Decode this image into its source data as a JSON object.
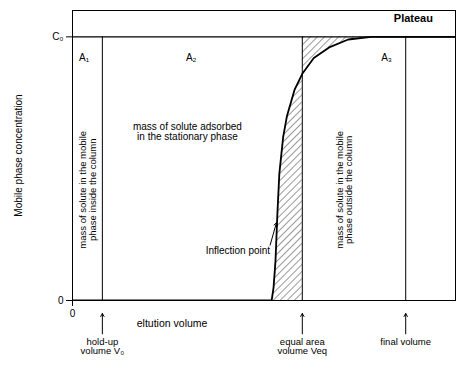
{
  "chart_data": {
    "type": "line",
    "xlabel": "eltution volume",
    "ylabel": "Mobile phase concentration",
    "x": [
      0,
      52,
      52.5,
      53,
      53.5,
      54,
      55,
      56,
      58,
      60,
      63,
      67,
      72,
      78,
      100
    ],
    "values": [
      0,
      0,
      0.05,
      0.15,
      0.33,
      0.48,
      0.62,
      0.7,
      0.8,
      0.86,
      0.92,
      0.96,
      0.99,
      1,
      1
    ],
    "color": "#000000",
    "xlim": [
      0,
      100
    ],
    "ylim": [
      0,
      1.1
    ],
    "xticks": [
      0
    ],
    "yticks": [
      0,
      {
        "value": 1,
        "label": "C₀"
      }
    ],
    "markers": [
      {
        "x": 7.8,
        "label": "hold-up\nvolume V₀"
      },
      {
        "x": 60,
        "label": "equal area\nvolume Veq"
      },
      {
        "x": 87,
        "label": "final volume"
      }
    ],
    "plateau_label": {
      "text": "Plateau",
      "x": 89,
      "y": 1.07
    },
    "annotations": [
      {
        "text": "A₁",
        "x": 3,
        "y": 0.92
      },
      {
        "text": "A₂",
        "x": 31,
        "y": 0.92
      },
      {
        "text": "A₃",
        "x": 82,
        "y": 0.92
      },
      {
        "text": "mass of solute adsorbed\nin the stationary phase",
        "x": 30,
        "y": 0.64
      }
    ],
    "vertical_annotations": [
      {
        "text": "mass of solute in the mobile\nphase inside the column",
        "x": 4,
        "y": 0.42
      },
      {
        "text": "mass of solute in the mobile\nphase outside the column",
        "x": 71,
        "y": 0.42
      }
    ],
    "inflection_point": {
      "x": 53.4,
      "y": 0.31,
      "label": "Inflection point"
    }
  }
}
